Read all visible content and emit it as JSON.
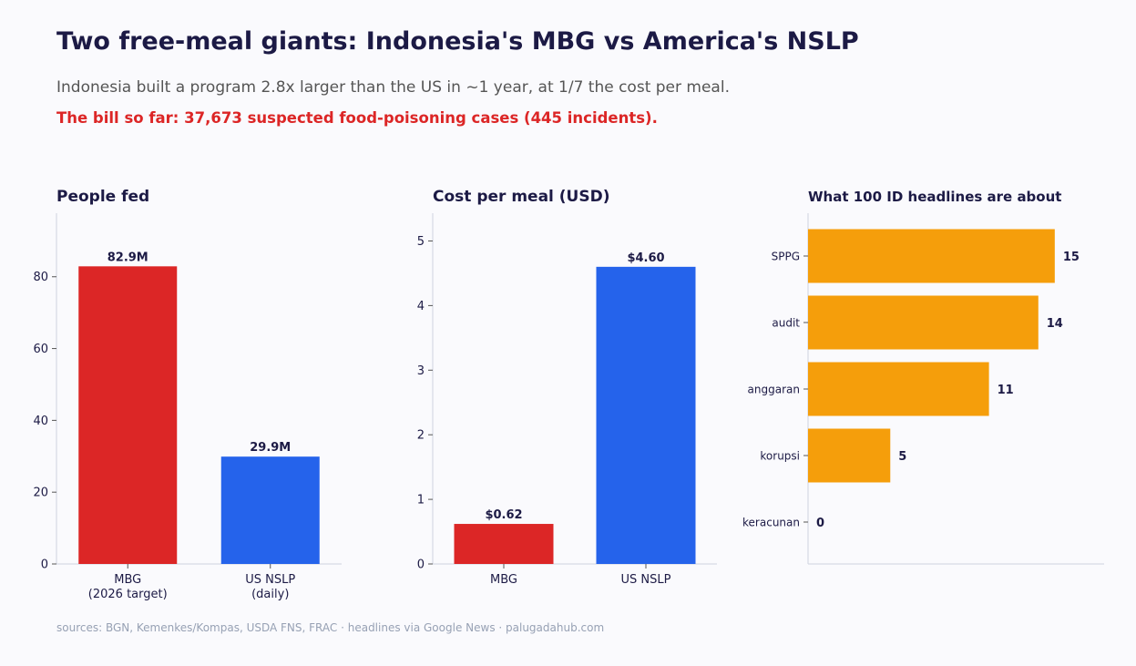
{
  "header": {
    "title": "Two free-meal giants: Indonesia's MBG vs America's NSLP",
    "subtitle": "Indonesia built a program 2.8x larger than the US in ~1 year, at 1/7 the cost per meal.",
    "alert": "The bill so far: 37,673 suspected food-poisoning cases (445 incidents)."
  },
  "footer": {
    "source": "sources: BGN, Kemenkes/Kompas, USDA FNS, FRAC · headlines via Google News · palugadahub.com"
  },
  "colors": {
    "red": "#dc2626",
    "blue": "#2563eb",
    "orange": "#f59e0b",
    "text": "#1c1a45",
    "axis": "#cfd3e0"
  },
  "chart_data": [
    {
      "type": "bar",
      "title": "People fed",
      "categories": [
        [
          "MBG",
          "(2026 target)"
        ],
        [
          "US NSLP",
          "(daily)"
        ]
      ],
      "values": [
        82.9,
        29.9
      ],
      "data_labels": [
        "82.9M",
        "29.9M"
      ],
      "colors": [
        "#dc2626",
        "#2563eb"
      ],
      "ylim": [
        0,
        97.7
      ],
      "yticks": [
        0,
        20,
        40,
        60,
        80
      ],
      "grid": false
    },
    {
      "type": "bar",
      "title": "Cost per meal (USD)",
      "categories": [
        [
          "MBG"
        ],
        [
          "US NSLP"
        ]
      ],
      "values": [
        0.62,
        4.6
      ],
      "data_labels": [
        "$0.62",
        "$4.60"
      ],
      "colors": [
        "#dc2626",
        "#2563eb"
      ],
      "ylim": [
        0,
        5.43
      ],
      "yticks": [
        0,
        1,
        2,
        3,
        4,
        5
      ],
      "grid": false
    },
    {
      "type": "bar",
      "orientation": "horizontal",
      "title": "What 100 ID headlines are about",
      "categories": [
        "SPPG",
        "audit",
        "anggaran",
        "korupsi",
        "keracunan"
      ],
      "values": [
        15,
        14,
        11,
        5,
        0
      ],
      "data_labels": [
        "15",
        "14",
        "11",
        "5",
        "0"
      ],
      "color": "#f59e0b",
      "xlim": [
        0,
        18
      ],
      "grid": false
    }
  ]
}
